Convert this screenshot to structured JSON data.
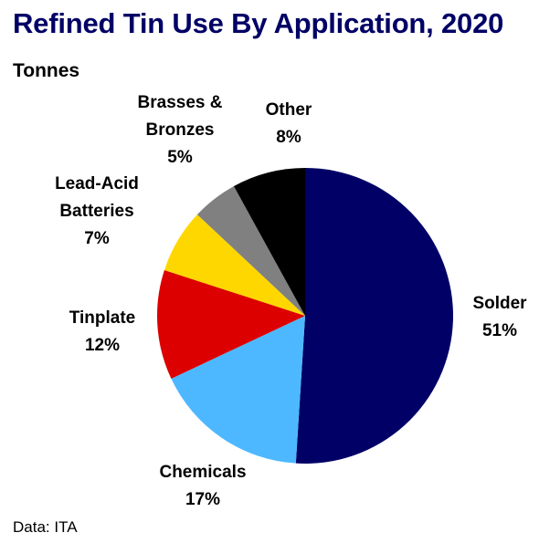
{
  "title": "Refined Tin Use By Application, 2020",
  "subtitle": "Tonnes",
  "source": "Data: ITA",
  "chart_data": {
    "type": "pie",
    "title": "Refined Tin Use By Application, 2020",
    "subtitle": "Tonnes",
    "unit": "%",
    "slices": [
      {
        "label": "Solder",
        "label_lines": [
          "Solder"
        ],
        "value": 51,
        "value_label": "51%",
        "color": "#000066"
      },
      {
        "label": "Chemicals",
        "label_lines": [
          "Chemicals"
        ],
        "value": 17,
        "value_label": "17%",
        "color": "#4DB8FF"
      },
      {
        "label": "Tinplate",
        "label_lines": [
          "Tinplate"
        ],
        "value": 12,
        "value_label": "12%",
        "color": "#DD0000"
      },
      {
        "label": "Lead-Acid Batteries",
        "label_lines": [
          "Lead-Acid",
          "Batteries"
        ],
        "value": 7,
        "value_label": "7%",
        "color": "#FFD700"
      },
      {
        "label": "Brasses & Bronzes",
        "label_lines": [
          "Brasses &",
          "Bronzes"
        ],
        "value": 5,
        "value_label": "5%",
        "color": "#808080"
      },
      {
        "label": "Other",
        "label_lines": [
          "Other"
        ],
        "value": 8,
        "value_label": "8%",
        "color": "#000000"
      }
    ],
    "start_angle": "12 o'clock",
    "direction": "clockwise",
    "legend": "none",
    "source": "Data: ITA"
  }
}
